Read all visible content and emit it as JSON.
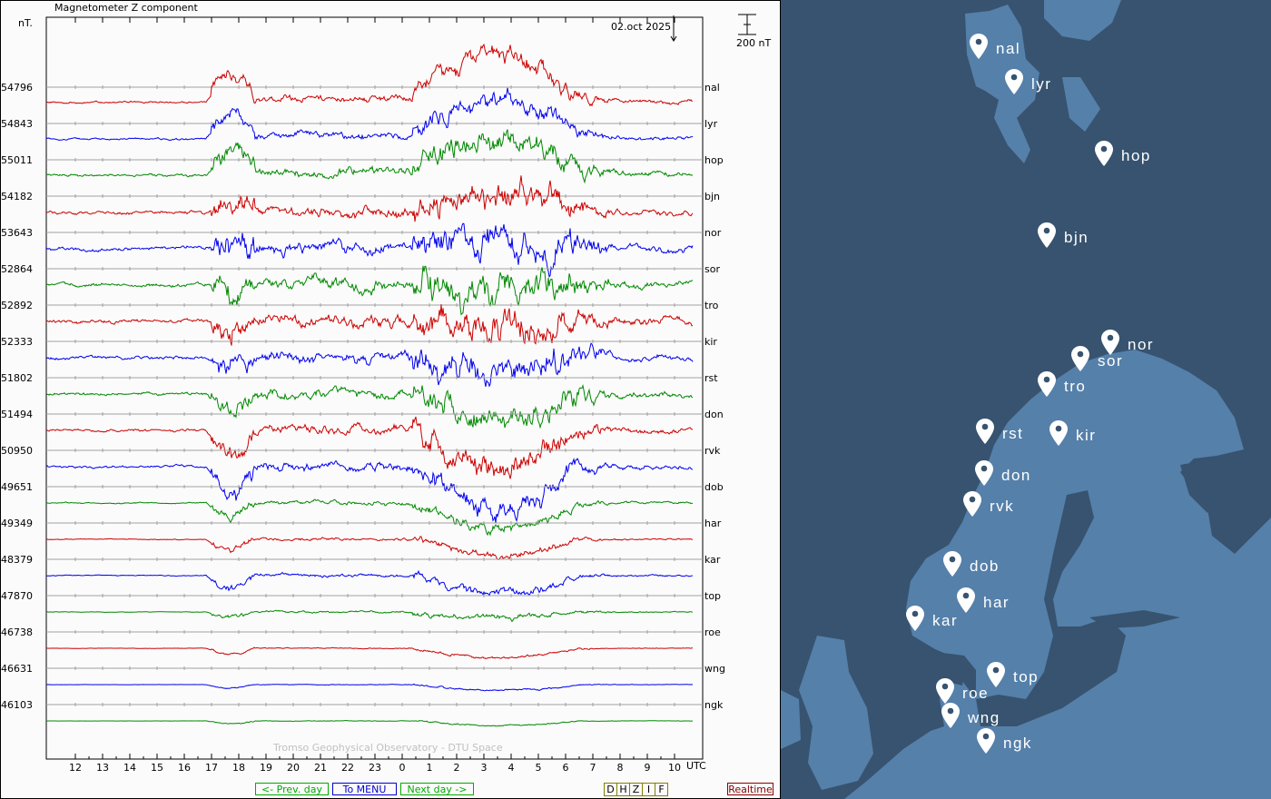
{
  "header": {
    "title": "Magnetometer Z component",
    "unit": "nT.",
    "date": "02.oct 2025",
    "scale_label": "200 nT",
    "credit": "Tromso Geophysical Observatory - DTU Space"
  },
  "nav": {
    "prev": "<- Prev. day",
    "menu": "To MENU",
    "next": "Next day ->",
    "components": [
      "D",
      "H",
      "Z",
      "I",
      "F"
    ],
    "realtime": "Realtime"
  },
  "colors": {
    "red": "#cc0000",
    "blue": "#0000ee",
    "green": "#008800",
    "grid": "#a0a0a0",
    "ocean": "#37536f",
    "land": "#5580aa"
  },
  "chart_data": {
    "type": "line",
    "title": "Magnetometer Z component",
    "ylabel": "nT.",
    "xlabel": "UTC",
    "x_ticks": [
      "12",
      "13",
      "14",
      "15",
      "16",
      "17",
      "18",
      "19",
      "20",
      "21",
      "22",
      "23",
      "0",
      "1",
      "2",
      "3",
      "4",
      "5",
      "6",
      "7",
      "8",
      "9",
      "10"
    ],
    "x_unit_label": "UTC",
    "scale_bar_nT": 200,
    "series": [
      {
        "name": "nal",
        "baseline": "54796",
        "color": "#cc0000",
        "relative_activity": 1.0,
        "bay": -1.2
      },
      {
        "name": "lyr",
        "baseline": "54843",
        "color": "#0000ee",
        "relative_activity": 1.0,
        "bay": -1.0
      },
      {
        "name": "hop",
        "baseline": "55011",
        "color": "#008800",
        "relative_activity": 1.3,
        "bay": -0.8
      },
      {
        "name": "bjn",
        "baseline": "54182",
        "color": "#cc0000",
        "relative_activity": 1.5,
        "bay": -0.6
      },
      {
        "name": "nor",
        "baseline": "53643",
        "color": "#0000ee",
        "relative_activity": 1.8,
        "bay": -0.3
      },
      {
        "name": "sor",
        "baseline": "52864",
        "color": "#008800",
        "relative_activity": 1.8,
        "bay": 0.0
      },
      {
        "name": "tro",
        "baseline": "52892",
        "color": "#cc0000",
        "relative_activity": 1.8,
        "bay": 0.2
      },
      {
        "name": "kir",
        "baseline": "52333",
        "color": "#0000ee",
        "relative_activity": 1.6,
        "bay": 0.4
      },
      {
        "name": "rst",
        "baseline": "51802",
        "color": "#008800",
        "relative_activity": 1.4,
        "bay": 0.8
      },
      {
        "name": "don",
        "baseline": "51494",
        "color": "#cc0000",
        "relative_activity": 1.3,
        "bay": 1.2
      },
      {
        "name": "rvk",
        "baseline": "50950",
        "color": "#0000ee",
        "relative_activity": 1.2,
        "bay": 1.3
      },
      {
        "name": "dob",
        "baseline": "49651",
        "color": "#008800",
        "relative_activity": 0.6,
        "bay": 0.8
      },
      {
        "name": "har",
        "baseline": "49349",
        "color": "#cc0000",
        "relative_activity": 0.4,
        "bay": 0.5
      },
      {
        "name": "kar",
        "baseline": "48379",
        "color": "#0000ee",
        "relative_activity": 0.45,
        "bay": 0.6
      },
      {
        "name": "top",
        "baseline": "47870",
        "color": "#008800",
        "relative_activity": 0.3,
        "bay": 0.2
      },
      {
        "name": "roe",
        "baseline": "46738",
        "color": "#cc0000",
        "relative_activity": 0.15,
        "bay": 0.3
      },
      {
        "name": "wng",
        "baseline": "46631",
        "color": "#0000ee",
        "relative_activity": 0.1,
        "bay": 0.2
      },
      {
        "name": "ngk",
        "baseline": "46103",
        "color": "#008800",
        "relative_activity": 0.08,
        "bay": 0.15
      }
    ]
  },
  "map": {
    "stations": [
      "nal",
      "lyr",
      "hop",
      "bjn",
      "nor",
      "sor",
      "tro",
      "rst",
      "kir",
      "don",
      "rvk",
      "dob",
      "har",
      "kar",
      "top",
      "roe",
      "wng",
      "ngk"
    ]
  }
}
